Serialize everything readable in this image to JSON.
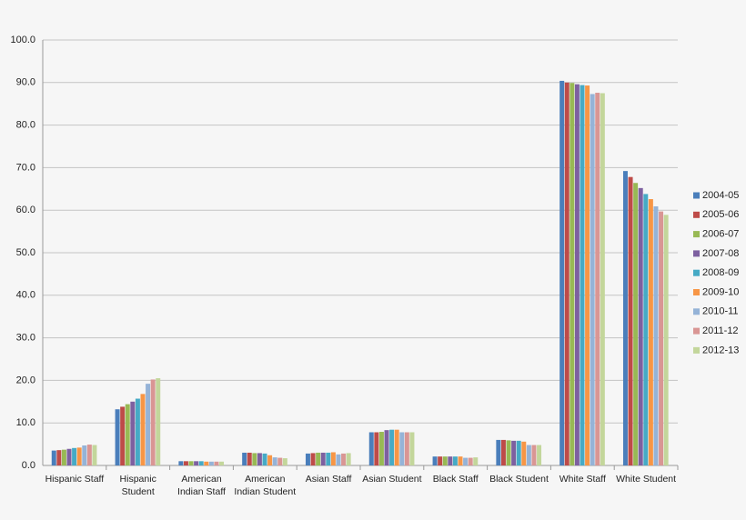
{
  "chart_data": {
    "type": "bar",
    "categories": [
      "Hispanic Staff",
      "Hispanic Student",
      "American Indian Staff",
      "American Indian Student",
      "Asian Staff",
      "Asian Student",
      "Black Staff",
      "Black Student",
      "White Staff",
      "White Student"
    ],
    "series": [
      {
        "name": "2004-05",
        "color": "#4a7ebb",
        "values": [
          3.5,
          13.2,
          1.0,
          3.0,
          2.8,
          7.8,
          2.1,
          6.0,
          90.4,
          69.2
        ]
      },
      {
        "name": "2005-06",
        "color": "#be4b48",
        "values": [
          3.6,
          13.8,
          1.0,
          3.0,
          2.9,
          7.8,
          2.1,
          6.0,
          90.0,
          67.8
        ]
      },
      {
        "name": "2006-07",
        "color": "#98b954",
        "values": [
          3.7,
          14.4,
          1.0,
          2.9,
          3.0,
          7.9,
          2.1,
          5.9,
          89.9,
          66.4
        ]
      },
      {
        "name": "2007-08",
        "color": "#7d60a0",
        "values": [
          3.9,
          15.0,
          1.0,
          2.9,
          3.0,
          8.3,
          2.1,
          5.8,
          89.6,
          65.2
        ]
      },
      {
        "name": "2008-09",
        "color": "#46aac5",
        "values": [
          4.1,
          15.7,
          1.0,
          2.8,
          3.0,
          8.4,
          2.1,
          5.8,
          89.4,
          63.8
        ]
      },
      {
        "name": "2009-10",
        "color": "#f79646",
        "values": [
          4.2,
          16.8,
          0.9,
          2.4,
          3.1,
          8.4,
          2.1,
          5.6,
          89.3,
          62.6
        ]
      },
      {
        "name": "2010-11",
        "color": "#95b3d7",
        "values": [
          4.7,
          19.2,
          0.9,
          1.9,
          2.6,
          7.8,
          1.8,
          4.8,
          87.3,
          60.9
        ]
      },
      {
        "name": "2011-12",
        "color": "#d99694",
        "values": [
          4.9,
          20.2,
          0.9,
          1.8,
          2.8,
          7.8,
          1.8,
          4.8,
          87.6,
          59.7
        ]
      },
      {
        "name": "2012-13",
        "color": "#c3d69b",
        "values": [
          4.8,
          20.5,
          0.9,
          1.7,
          2.9,
          7.8,
          1.9,
          4.8,
          87.5,
          58.9
        ]
      }
    ],
    "ylim": [
      0,
      100
    ],
    "yticks": [
      {
        "value": 0,
        "label": "0.0"
      },
      {
        "value": 10,
        "label": "10.0"
      },
      {
        "value": 20,
        "label": "20.0"
      },
      {
        "value": 30,
        "label": "30.0"
      },
      {
        "value": 40,
        "label": "40.0"
      },
      {
        "value": 50,
        "label": "50.0"
      },
      {
        "value": 60,
        "label": "60.0"
      },
      {
        "value": 70,
        "label": "70.0"
      },
      {
        "value": 80,
        "label": "80.0"
      },
      {
        "value": 90,
        "label": "90.0"
      },
      {
        "value": 100,
        "label": "100.0"
      }
    ],
    "grid": true,
    "legend": "right"
  }
}
